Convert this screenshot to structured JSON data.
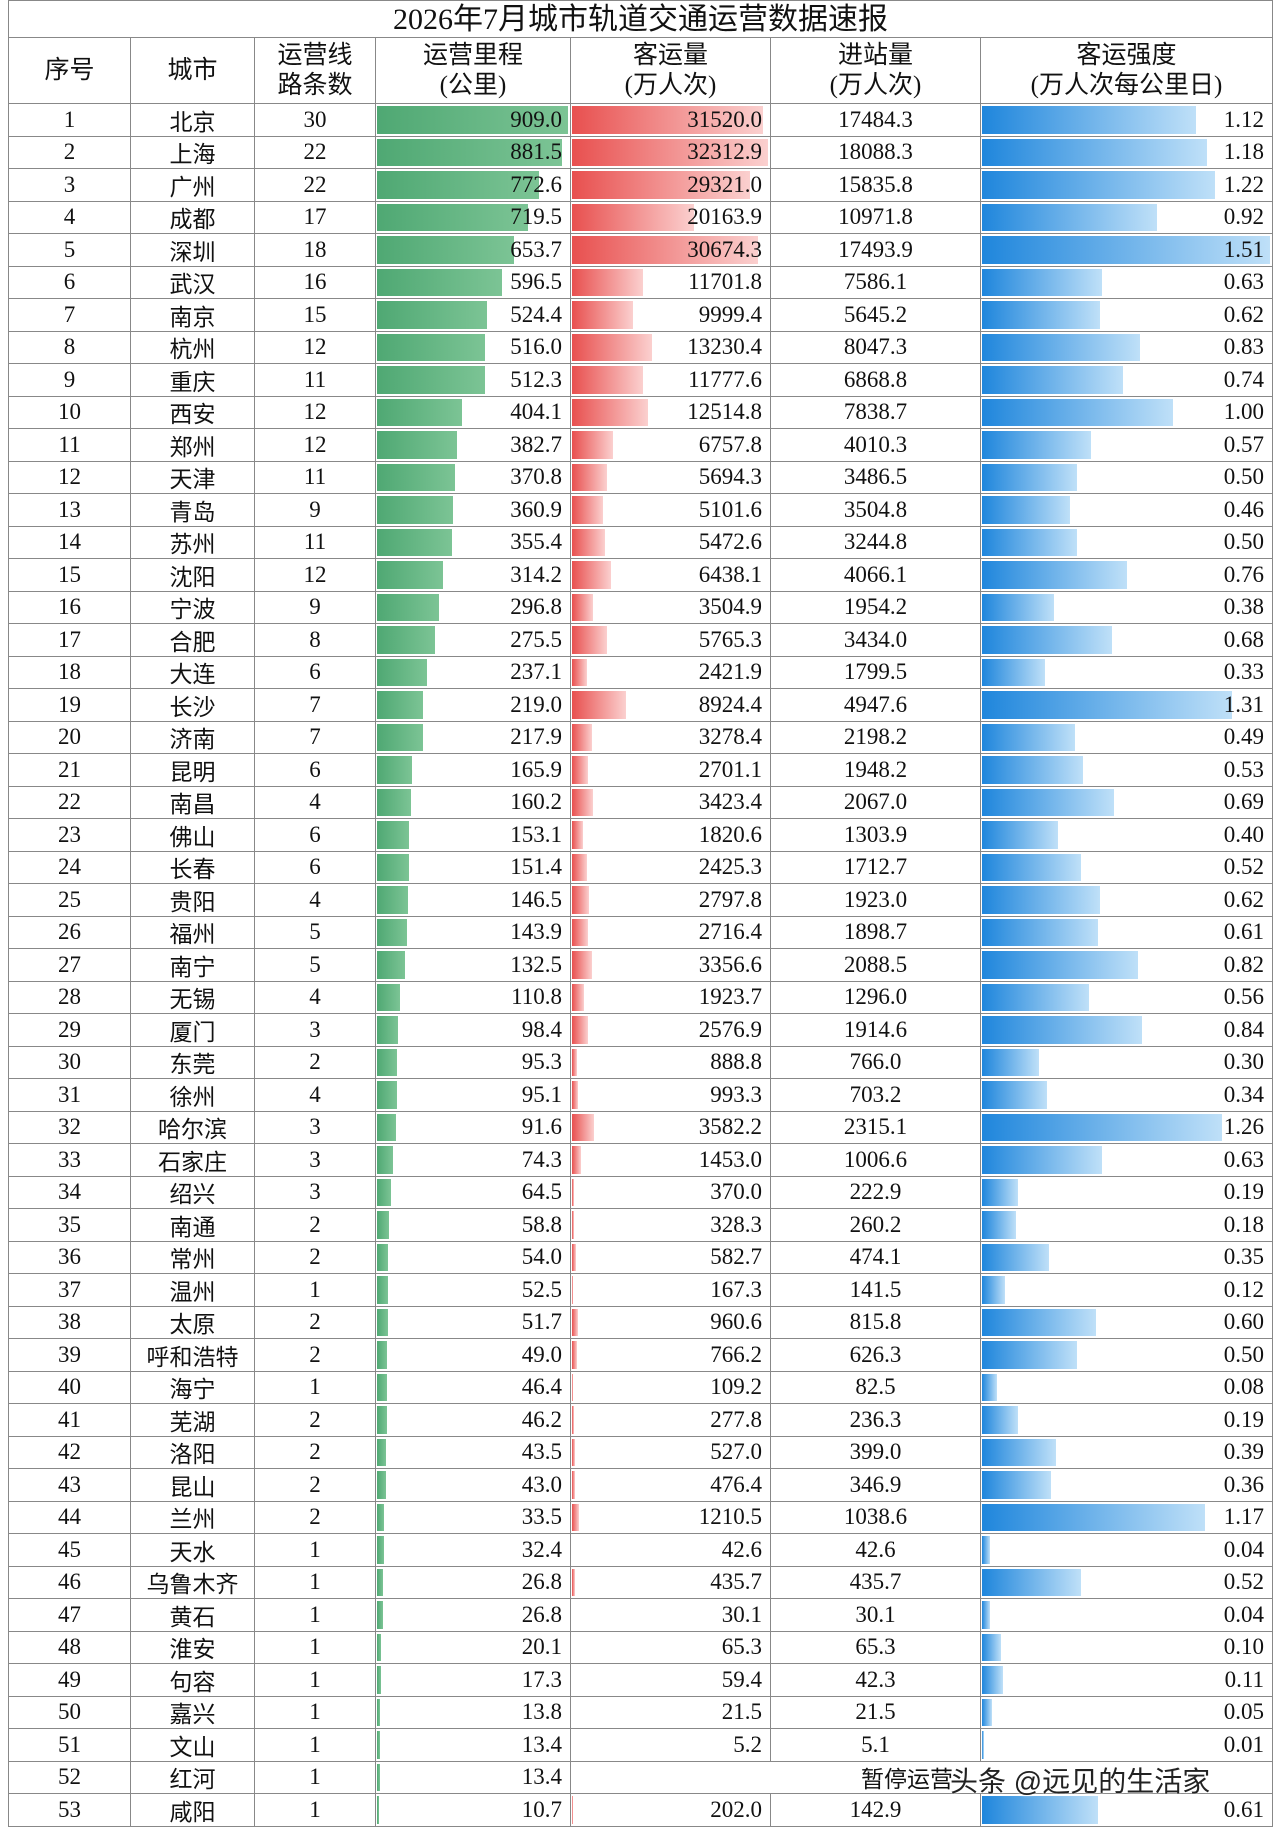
{
  "table": {
    "title": "2026年7月城市轨道交通运营数据速报",
    "headers": [
      [
        "序号"
      ],
      [
        "城市"
      ],
      [
        "运营线",
        "路条数"
      ],
      [
        "运营里程",
        "(公里)"
      ],
      [
        "客运量",
        "(万人次)"
      ],
      [
        "进站量",
        "(万人次)"
      ],
      [
        "客运强度",
        "(万人次每公里日)"
      ]
    ],
    "rows": [
      [
        "1",
        "北京",
        "30",
        "909.0",
        "31520.0",
        "17484.3",
        "1.12"
      ],
      [
        "2",
        "上海",
        "22",
        "881.5",
        "32312.9",
        "18088.3",
        "1.18"
      ],
      [
        "3",
        "广州",
        "22",
        "772.6",
        "29321.0",
        "15835.8",
        "1.22"
      ],
      [
        "4",
        "成都",
        "17",
        "719.5",
        "20163.9",
        "10971.8",
        "0.92"
      ],
      [
        "5",
        "深圳",
        "18",
        "653.7",
        "30674.3",
        "17493.9",
        "1.51"
      ],
      [
        "6",
        "武汉",
        "16",
        "596.5",
        "11701.8",
        "7586.1",
        "0.63"
      ],
      [
        "7",
        "南京",
        "15",
        "524.4",
        "9999.4",
        "5645.2",
        "0.62"
      ],
      [
        "8",
        "杭州",
        "12",
        "516.0",
        "13230.4",
        "8047.3",
        "0.83"
      ],
      [
        "9",
        "重庆",
        "11",
        "512.3",
        "11777.6",
        "6868.8",
        "0.74"
      ],
      [
        "10",
        "西安",
        "12",
        "404.1",
        "12514.8",
        "7838.7",
        "1.00"
      ],
      [
        "11",
        "郑州",
        "12",
        "382.7",
        "6757.8",
        "4010.3",
        "0.57"
      ],
      [
        "12",
        "天津",
        "11",
        "370.8",
        "5694.3",
        "3486.5",
        "0.50"
      ],
      [
        "13",
        "青岛",
        "9",
        "360.9",
        "5101.6",
        "3504.8",
        "0.46"
      ],
      [
        "14",
        "苏州",
        "11",
        "355.4",
        "5472.6",
        "3244.8",
        "0.50"
      ],
      [
        "15",
        "沈阳",
        "12",
        "314.2",
        "6438.1",
        "4066.1",
        "0.76"
      ],
      [
        "16",
        "宁波",
        "9",
        "296.8",
        "3504.9",
        "1954.2",
        "0.38"
      ],
      [
        "17",
        "合肥",
        "8",
        "275.5",
        "5765.3",
        "3434.0",
        "0.68"
      ],
      [
        "18",
        "大连",
        "6",
        "237.1",
        "2421.9",
        "1799.5",
        "0.33"
      ],
      [
        "19",
        "长沙",
        "7",
        "219.0",
        "8924.4",
        "4947.6",
        "1.31"
      ],
      [
        "20",
        "济南",
        "7",
        "217.9",
        "3278.4",
        "2198.2",
        "0.49"
      ],
      [
        "21",
        "昆明",
        "6",
        "165.9",
        "2701.1",
        "1948.2",
        "0.53"
      ],
      [
        "22",
        "南昌",
        "4",
        "160.2",
        "3423.4",
        "2067.0",
        "0.69"
      ],
      [
        "23",
        "佛山",
        "6",
        "153.1",
        "1820.6",
        "1303.9",
        "0.40"
      ],
      [
        "24",
        "长春",
        "6",
        "151.4",
        "2425.3",
        "1712.7",
        "0.52"
      ],
      [
        "25",
        "贵阳",
        "4",
        "146.5",
        "2797.8",
        "1923.0",
        "0.62"
      ],
      [
        "26",
        "福州",
        "5",
        "143.9",
        "2716.4",
        "1898.7",
        "0.61"
      ],
      [
        "27",
        "南宁",
        "5",
        "132.5",
        "3356.6",
        "2088.5",
        "0.82"
      ],
      [
        "28",
        "无锡",
        "4",
        "110.8",
        "1923.7",
        "1296.0",
        "0.56"
      ],
      [
        "29",
        "厦门",
        "3",
        "98.4",
        "2576.9",
        "1914.6",
        "0.84"
      ],
      [
        "30",
        "东莞",
        "2",
        "95.3",
        "888.8",
        "766.0",
        "0.30"
      ],
      [
        "31",
        "徐州",
        "4",
        "95.1",
        "993.3",
        "703.2",
        "0.34"
      ],
      [
        "32",
        "哈尔滨",
        "3",
        "91.6",
        "3582.2",
        "2315.1",
        "1.26"
      ],
      [
        "33",
        "石家庄",
        "3",
        "74.3",
        "1453.0",
        "1006.6",
        "0.63"
      ],
      [
        "34",
        "绍兴",
        "3",
        "64.5",
        "370.0",
        "222.9",
        "0.19"
      ],
      [
        "35",
        "南通",
        "2",
        "58.8",
        "328.3",
        "260.2",
        "0.18"
      ],
      [
        "36",
        "常州",
        "2",
        "54.0",
        "582.7",
        "474.1",
        "0.35"
      ],
      [
        "37",
        "温州",
        "1",
        "52.5",
        "167.3",
        "141.5",
        "0.12"
      ],
      [
        "38",
        "太原",
        "2",
        "51.7",
        "960.6",
        "815.8",
        "0.60"
      ],
      [
        "39",
        "呼和浩特",
        "2",
        "49.0",
        "766.2",
        "626.3",
        "0.50"
      ],
      [
        "40",
        "海宁",
        "1",
        "46.4",
        "109.2",
        "82.5",
        "0.08"
      ],
      [
        "41",
        "芜湖",
        "2",
        "46.2",
        "277.8",
        "236.3",
        "0.19"
      ],
      [
        "42",
        "洛阳",
        "2",
        "43.5",
        "527.0",
        "399.0",
        "0.39"
      ],
      [
        "43",
        "昆山",
        "2",
        "43.0",
        "476.4",
        "346.9",
        "0.36"
      ],
      [
        "44",
        "兰州",
        "2",
        "33.5",
        "1210.5",
        "1038.6",
        "1.17"
      ],
      [
        "45",
        "天水",
        "1",
        "32.4",
        "42.6",
        "42.6",
        "0.04"
      ],
      [
        "46",
        "乌鲁木齐",
        "1",
        "26.8",
        "435.7",
        "435.7",
        "0.52"
      ],
      [
        "47",
        "黄石",
        "1",
        "26.8",
        "30.1",
        "30.1",
        "0.04"
      ],
      [
        "48",
        "淮安",
        "1",
        "20.1",
        "65.3",
        "65.3",
        "0.10"
      ],
      [
        "49",
        "句容",
        "1",
        "17.3",
        "59.4",
        "42.3",
        "0.11"
      ],
      [
        "50",
        "嘉兴",
        "1",
        "13.8",
        "21.5",
        "21.5",
        "0.05"
      ],
      [
        "51",
        "文山",
        "1",
        "13.4",
        "5.2",
        "5.1",
        "0.01"
      ],
      [
        "52",
        "红河",
        "1",
        "13.4"
      ],
      [
        "53",
        "咸阳",
        "1",
        "10.7",
        "202.0",
        "142.9",
        "0.61"
      ]
    ],
    "suspended_note": "暂停运营",
    "watermark": "头条 @远见的生活家"
  }
}
